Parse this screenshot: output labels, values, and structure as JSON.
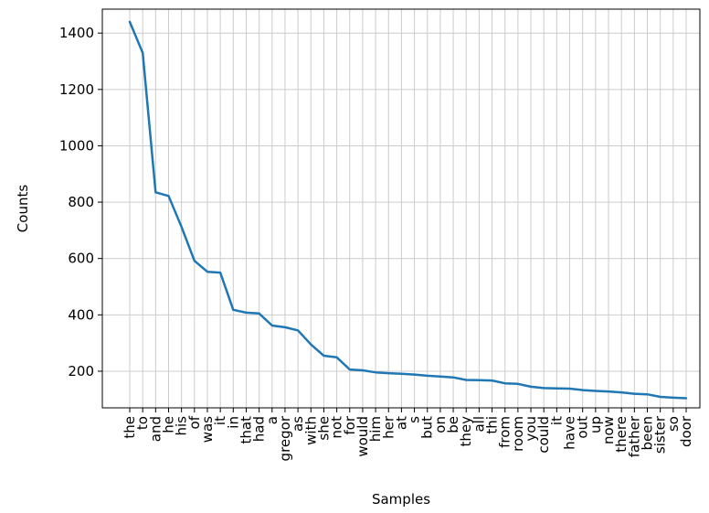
{
  "chart_data": {
    "type": "line",
    "title": "",
    "xlabel": "Samples",
    "ylabel": "Counts",
    "ylim": [
      70,
      1485
    ],
    "y_ticks": [
      200,
      400,
      600,
      800,
      1000,
      1200,
      1400
    ],
    "grid": true,
    "legend": "none",
    "colors": {
      "line": "#1f77b4",
      "grid": "#cccccc",
      "axes": "#000000"
    },
    "categories": [
      "the",
      "to",
      "and",
      "he",
      "his",
      "of",
      "was",
      "it",
      "in",
      "that",
      "had",
      "a",
      "gregor",
      "as",
      "with",
      "she",
      "not",
      "for",
      "would",
      "him",
      "her",
      "at",
      "s",
      "but",
      "on",
      "be",
      "they",
      "all",
      "thi",
      "from",
      "room",
      "you",
      "could",
      "it",
      "have",
      "out",
      "up",
      "now",
      "there",
      "father",
      "been",
      "sister",
      "so",
      "door"
    ],
    "values": [
      1440,
      1330,
      835,
      822,
      712,
      592,
      553,
      550,
      418,
      408,
      405,
      362,
      356,
      345,
      295,
      255,
      249,
      206,
      203,
      196,
      193,
      191,
      188,
      184,
      181,
      178,
      169,
      168,
      167,
      157,
      155,
      145,
      140,
      139,
      138,
      133,
      130,
      128,
      125,
      120,
      118,
      109,
      106,
      104
    ]
  }
}
